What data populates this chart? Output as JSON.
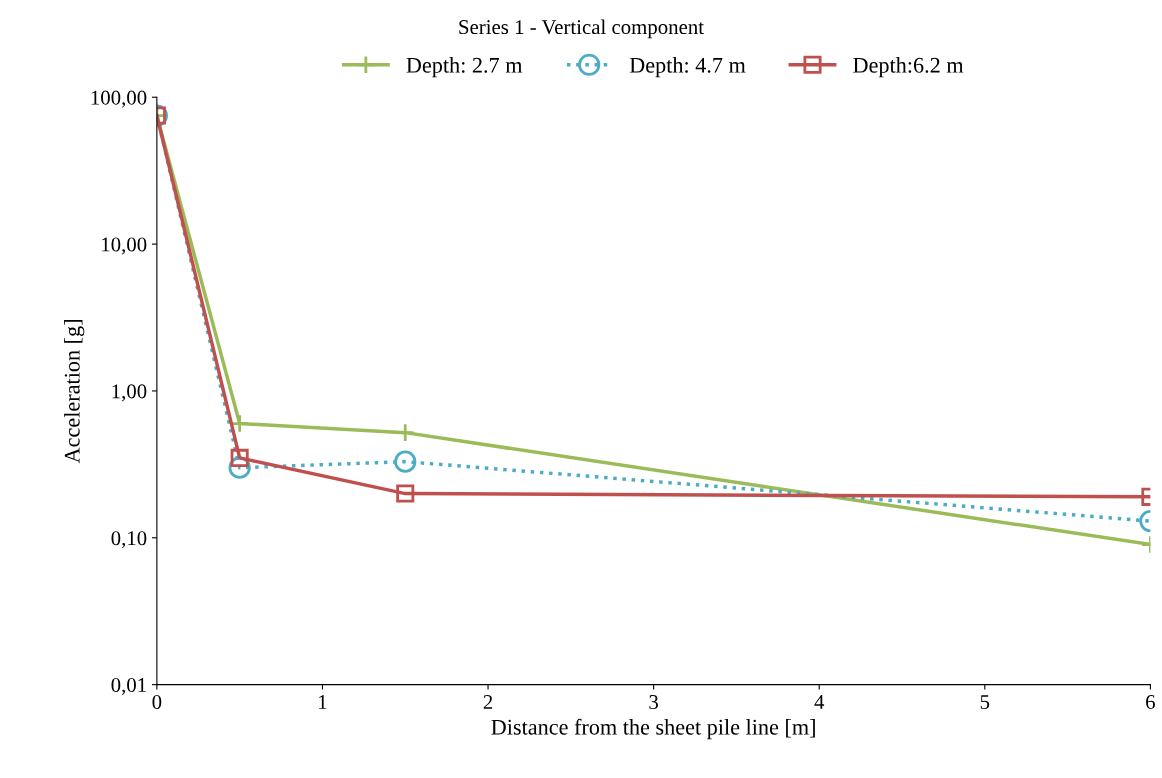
{
  "chart_data": {
    "type": "line",
    "title": "Series 1 - Vertical component",
    "xlabel": "Distance from the sheet pile line [m]",
    "ylabel": "Acceleration [g]",
    "x": [
      0,
      0.5,
      1.5,
      6
    ],
    "series": [
      {
        "name": "Depth: 2.7 m",
        "color": "#9bbb59",
        "marker": "cross",
        "line_style": "solid",
        "values": [
          75,
          0.6,
          0.52,
          0.09
        ]
      },
      {
        "name": "Depth: 4.7 m",
        "color": "#4bacc6",
        "marker": "circle",
        "line_style": "dotted",
        "values": [
          75,
          0.3,
          0.33,
          0.13
        ]
      },
      {
        "name": "Depth:6.2 m",
        "color": "#c0504d",
        "marker": "square",
        "line_style": "solid",
        "values": [
          75,
          0.35,
          0.2,
          0.19
        ]
      }
    ],
    "log": "y",
    "xlim": [
      0,
      6
    ],
    "xticks": [
      0,
      1,
      2,
      3,
      4,
      5,
      6
    ],
    "ylim": [
      0.01,
      100
    ],
    "yticks": [
      {
        "value": 0.01,
        "label": "0,01"
      },
      {
        "value": 0.1,
        "label": "0,10"
      },
      {
        "value": 1,
        "label": "1,00"
      },
      {
        "value": 10,
        "label": "10,00"
      },
      {
        "value": 100,
        "label": "100,00"
      }
    ],
    "grid": false,
    "legend": "top"
  }
}
